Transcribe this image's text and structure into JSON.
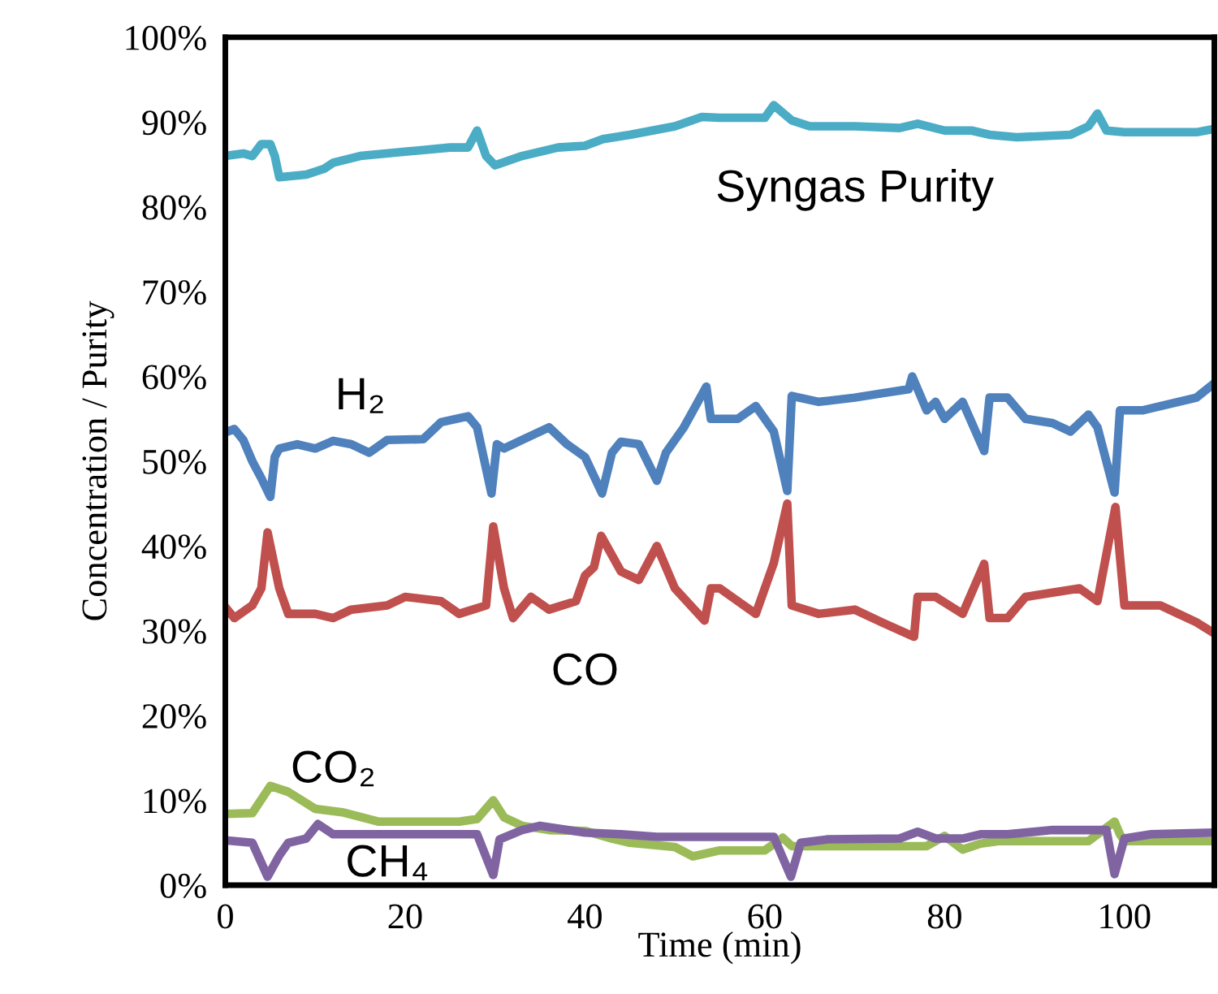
{
  "chart_data": {
    "type": "line",
    "xlabel": "Time (min)",
    "ylabel": "Concentration / Purity",
    "xlim": [
      0,
      110
    ],
    "xticks": [
      0,
      20,
      40,
      60,
      80,
      100
    ],
    "ylim": [
      0,
      100
    ],
    "yticks": [
      {
        "value": 0,
        "label": "0%"
      },
      {
        "value": 10,
        "label": "10%"
      },
      {
        "value": 20,
        "label": "20%"
      },
      {
        "value": 30,
        "label": "30%"
      },
      {
        "value": 40,
        "label": "40%"
      },
      {
        "value": 50,
        "label": "50%"
      },
      {
        "value": 60,
        "label": "60%"
      },
      {
        "value": 70,
        "label": "70%"
      },
      {
        "value": 80,
        "label": "80%"
      },
      {
        "value": 90,
        "label": "90%"
      },
      {
        "value": 100,
        "label": "100%"
      }
    ],
    "grid": false,
    "legend": false,
    "marker": "none",
    "line_style": "solid",
    "series": [
      {
        "name": "Syngas Purity",
        "color": "#4bacc6",
        "x": [
          0,
          2,
          3,
          4,
          5,
          5.5,
          6,
          9,
          11,
          12,
          15,
          20,
          25,
          27,
          28,
          29,
          30,
          33,
          37,
          40,
          42,
          45,
          50,
          53,
          55,
          60,
          61,
          63,
          65,
          70,
          75,
          77,
          80,
          83,
          85,
          88,
          94,
          96,
          97,
          98,
          100,
          108,
          110
        ],
        "values": [
          86,
          86.3,
          86,
          87.4,
          87.4,
          86,
          83.5,
          83.8,
          84.5,
          85.2,
          86,
          86.5,
          87,
          87,
          89,
          86,
          84.9,
          86,
          87,
          87.2,
          88,
          88.5,
          89.5,
          90.6,
          90.5,
          90.5,
          92,
          90.2,
          89.5,
          89.5,
          89.3,
          89.8,
          89,
          89,
          88.5,
          88.2,
          88.5,
          89.5,
          91,
          89,
          88.8,
          88.8,
          89.2
        ]
      },
      {
        "name": "H₂",
        "color": "#4f81bd",
        "x": [
          0,
          1,
          2,
          3,
          4,
          5,
          5.5,
          6,
          8,
          10,
          12,
          14,
          16,
          18,
          22,
          24,
          27,
          28,
          29.6,
          30.2,
          31,
          33,
          36,
          38,
          40,
          41.9,
          43,
          44,
          46,
          48,
          49,
          51,
          53.5,
          54,
          57,
          59,
          61,
          62.5,
          63,
          66,
          70,
          73,
          76,
          76.4,
          78,
          79,
          80,
          82,
          84.4,
          85,
          87,
          89,
          92,
          94,
          96,
          97,
          98.9,
          99.5,
          102,
          106,
          108,
          110
        ],
        "values": [
          53.4,
          53.8,
          52.5,
          50,
          48,
          45.8,
          50.5,
          51.5,
          52,
          51.5,
          52.4,
          52,
          51,
          52.5,
          52.6,
          54.6,
          55.3,
          54,
          46.2,
          52,
          51.5,
          52.5,
          54,
          52,
          50.5,
          46.2,
          51,
          52.3,
          52,
          47.7,
          51,
          54,
          58.8,
          55,
          55,
          56.5,
          53.5,
          46.5,
          57.7,
          57,
          57.5,
          58,
          58.5,
          60,
          56,
          57,
          55,
          57,
          51.2,
          57.5,
          57.5,
          55,
          54.5,
          53.5,
          55.5,
          54,
          46.3,
          56,
          56,
          57,
          57.5,
          59.2
        ]
      },
      {
        "name": "CO",
        "color": "#c0504d",
        "x": [
          0,
          1,
          3,
          4,
          4.7,
          6,
          7,
          10,
          12,
          14,
          18,
          20,
          24,
          26,
          29,
          29.8,
          31,
          32,
          34,
          36,
          39,
          40,
          41,
          41.8,
          44,
          46,
          47,
          48,
          50,
          53.3,
          54,
          55,
          57,
          59,
          61,
          62.5,
          63,
          66,
          70,
          73,
          76.6,
          77,
          79,
          82,
          84.4,
          85,
          87,
          89,
          92,
          95,
          97,
          99,
          100,
          104,
          106,
          108,
          110
        ],
        "values": [
          32.8,
          31.5,
          33,
          35,
          41.6,
          35,
          32,
          32,
          31.5,
          32.5,
          33,
          34,
          33.5,
          32,
          33,
          42.3,
          35,
          31.5,
          34,
          32.5,
          33.5,
          36.5,
          37.5,
          41.2,
          37,
          36,
          38,
          40,
          35,
          31.2,
          35,
          35,
          33.5,
          32,
          38,
          45,
          33,
          32,
          32.5,
          31,
          29.3,
          34,
          34,
          32,
          37.9,
          31.5,
          31.5,
          34,
          34.5,
          35,
          33.5,
          44.6,
          33,
          33,
          32,
          31,
          29.7
        ]
      },
      {
        "name": "CO₂",
        "color": "#9bbb59",
        "x": [
          0,
          3,
          5,
          7,
          10,
          13,
          17,
          20,
          22,
          26,
          28,
          29.8,
          31,
          33,
          36,
          40,
          43,
          45,
          50,
          52,
          55,
          60,
          62,
          63,
          70,
          78,
          80,
          82,
          84,
          86,
          90,
          96,
          98.9,
          99.5,
          100,
          110
        ],
        "values": [
          8.4,
          8.5,
          11.7,
          11,
          9,
          8.6,
          7.5,
          7.5,
          7.5,
          7.5,
          7.8,
          10,
          8,
          7,
          6.5,
          6.4,
          5.5,
          5,
          4.5,
          3.4,
          4.1,
          4.1,
          5.6,
          4.6,
          4.6,
          4.6,
          5.8,
          4.2,
          4.9,
          5.2,
          5.2,
          5.2,
          7.5,
          6,
          5.2,
          5.2
        ]
      },
      {
        "name": "CH₄",
        "color": "#8064a2",
        "x": [
          0,
          3,
          4.7,
          6,
          7,
          9,
          10.3,
          12,
          20,
          28,
          29.8,
          30.5,
          33,
          35,
          40,
          44,
          48,
          52,
          61,
          62.9,
          64,
          67,
          75,
          77,
          79,
          82,
          84,
          87,
          92,
          98,
          98.9,
          100,
          103,
          110
        ],
        "values": [
          5.3,
          5,
          1,
          3.5,
          5,
          5.5,
          7.2,
          6,
          6,
          6,
          1.2,
          5.4,
          6.5,
          7,
          6.2,
          6,
          5.7,
          5.7,
          5.7,
          1,
          5,
          5.4,
          5.5,
          6.3,
          5.5,
          5.5,
          6,
          6,
          6.5,
          6.5,
          1.3,
          5.5,
          6,
          6.2
        ]
      }
    ]
  }
}
